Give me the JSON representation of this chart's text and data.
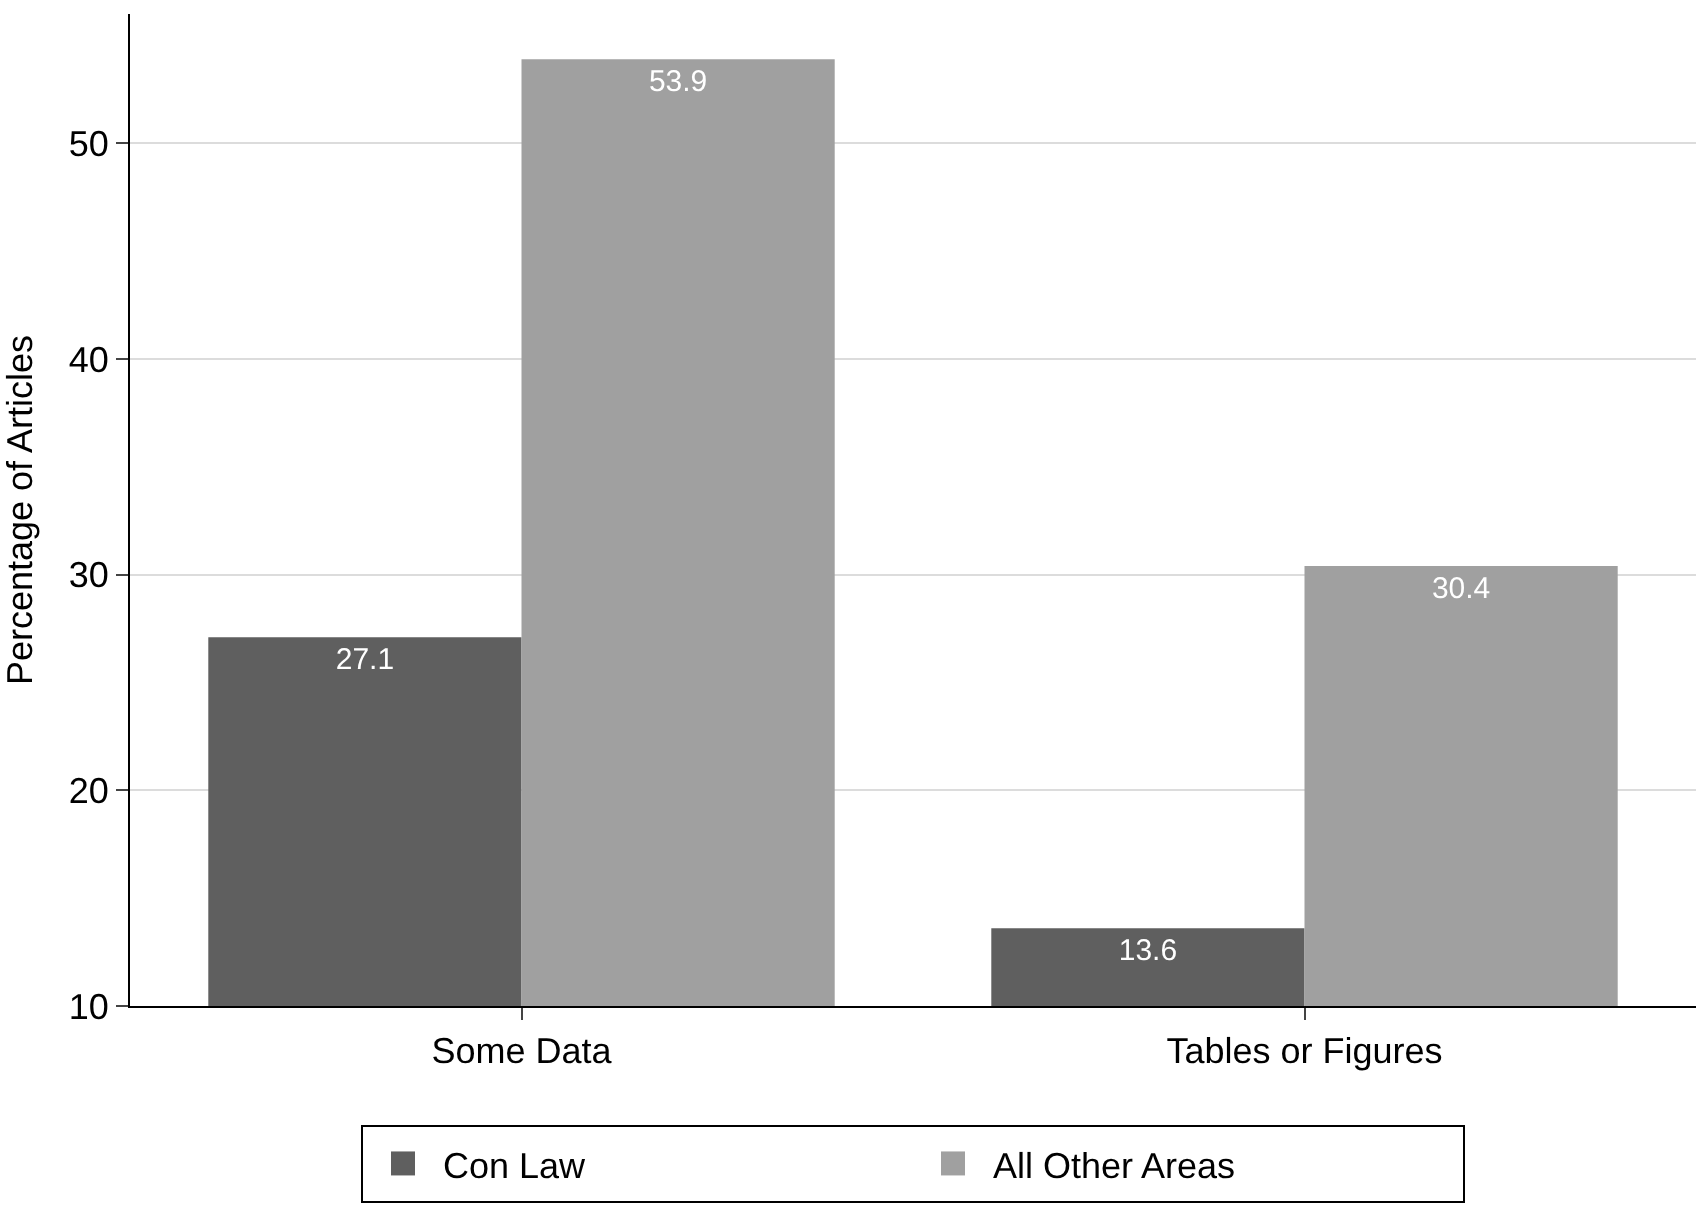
{
  "chart_data": {
    "type": "bar",
    "ylabel": "Percentage of Articles",
    "categories": [
      "Some Data",
      "Tables or Figures"
    ],
    "series": [
      {
        "name": "Con Law",
        "color": "#5f5f5f",
        "values": [
          27.1,
          13.6
        ]
      },
      {
        "name": "All Other Areas",
        "color": "#a0a0a0",
        "values": [
          53.9,
          30.4
        ]
      }
    ],
    "ylim": [
      10,
      56
    ],
    "yticks": [
      10,
      20,
      30,
      40,
      50
    ],
    "grid": "y",
    "legend": "bottom",
    "data_labels": true
  }
}
